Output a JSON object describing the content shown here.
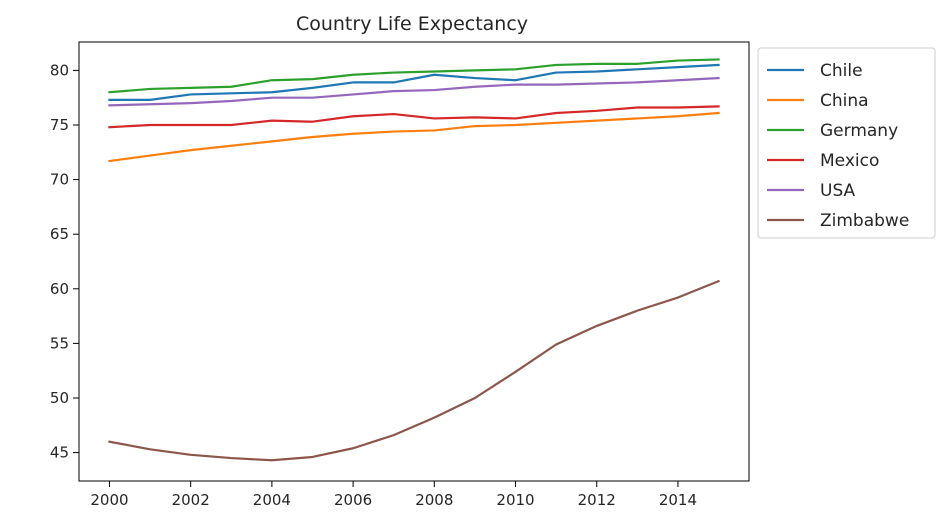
{
  "chart_data": {
    "type": "line",
    "title": "Country Life Expectancy",
    "xlabel": "",
    "ylabel": "",
    "x": [
      2000,
      2001,
      2002,
      2003,
      2004,
      2005,
      2006,
      2007,
      2008,
      2009,
      2010,
      2011,
      2012,
      2013,
      2014,
      2015
    ],
    "xlim": [
      1999.25,
      2015.75
    ],
    "ylim": [
      42.4,
      82.6
    ],
    "xticks": [
      2000,
      2002,
      2004,
      2006,
      2008,
      2010,
      2012,
      2014
    ],
    "yticks": [
      45,
      50,
      55,
      60,
      65,
      70,
      75,
      80
    ],
    "grid": false,
    "legend_position": "outside-right-top",
    "series": [
      {
        "name": "Chile",
        "color": "#1f77b4",
        "values": [
          77.3,
          77.3,
          77.8,
          77.9,
          78.0,
          78.4,
          78.9,
          78.9,
          79.6,
          79.3,
          79.1,
          79.8,
          79.9,
          80.1,
          80.3,
          80.5
        ]
      },
      {
        "name": "China",
        "color": "#ff7f0e",
        "values": [
          71.7,
          72.2,
          72.7,
          73.1,
          73.5,
          73.9,
          74.2,
          74.4,
          74.5,
          74.9,
          75.0,
          75.2,
          75.4,
          75.6,
          75.8,
          76.1
        ]
      },
      {
        "name": "Germany",
        "color": "#2ca02c",
        "values": [
          78.0,
          78.3,
          78.4,
          78.5,
          79.1,
          79.2,
          79.6,
          79.8,
          79.9,
          80.0,
          80.1,
          80.5,
          80.6,
          80.6,
          80.9,
          81.0
        ]
      },
      {
        "name": "Mexico",
        "color": "#d62728",
        "values": [
          74.8,
          75.0,
          75.0,
          75.0,
          75.4,
          75.3,
          75.8,
          76.0,
          75.6,
          75.7,
          75.6,
          76.1,
          76.3,
          76.6,
          76.6,
          76.7
        ]
      },
      {
        "name": "USA",
        "color": "#9467bd",
        "values": [
          76.8,
          76.9,
          77.0,
          77.2,
          77.5,
          77.5,
          77.8,
          78.1,
          78.2,
          78.5,
          78.7,
          78.7,
          78.8,
          78.9,
          79.1,
          79.3
        ]
      },
      {
        "name": "Zimbabwe",
        "color": "#8c564b",
        "values": [
          46.0,
          45.3,
          44.8,
          44.5,
          44.3,
          44.6,
          45.4,
          46.6,
          48.2,
          50.0,
          52.4,
          54.9,
          56.6,
          58.0,
          59.2,
          60.7
        ]
      }
    ]
  }
}
